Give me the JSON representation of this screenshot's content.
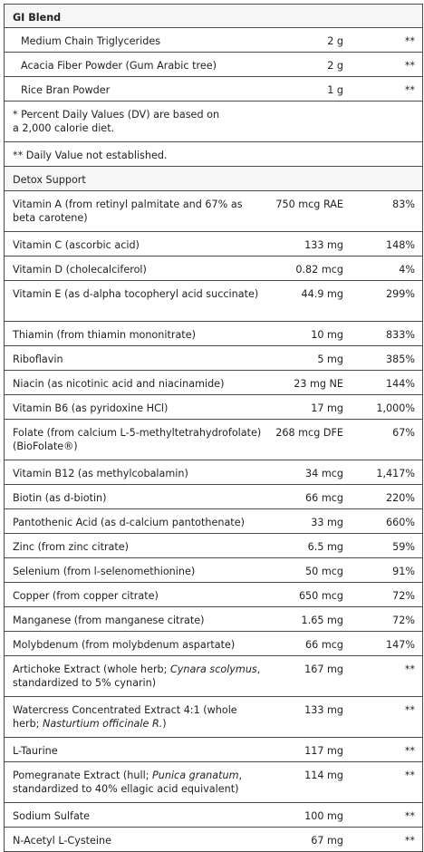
{
  "gi_blend": {
    "title": "GI Blend",
    "items": [
      {
        "name": "Medium Chain Triglycerides",
        "amount": "2 g",
        "dv": "**"
      },
      {
        "name": "Acacia Fiber Powder (Gum Arabic tree)",
        "amount": "2 g",
        "dv": "**"
      },
      {
        "name": "Rice Bran Powder",
        "amount": "1 g",
        "dv": "**"
      }
    ]
  },
  "footnotes": {
    "percent_dv": "* Percent Daily Values (DV) are based on a 2,000 calorie diet.",
    "not_established": "** Daily Value not established."
  },
  "detox_support": {
    "title": "Detox Support",
    "items": [
      {
        "name": "Vitamin A (from retinyl palmitate and 67% as beta carotene)",
        "amount": "750 mcg RAE",
        "dv": "83%"
      },
      {
        "name": "Vitamin C (ascorbic acid)",
        "amount": "133 mg",
        "dv": "148%"
      },
      {
        "name": "Vitamin D (cholecalciferol)",
        "amount": "0.82 mcg",
        "dv": "4%"
      },
      {
        "name": "Vitamin E (as d-alpha tocopheryl acid succinate)",
        "amount": "44.9 mg",
        "dv": "299%"
      },
      {
        "name": "Thiamin (from thiamin mononitrate)",
        "amount": "10 mg",
        "dv": "833%"
      },
      {
        "name": "Riboflavin",
        "amount": "5 mg",
        "dv": "385%"
      },
      {
        "name": "Niacin (as nicotinic acid and niacinamide)",
        "amount": "23 mg NE",
        "dv": "144%"
      },
      {
        "name": "Vitamin B6 (as pyridoxine HCl)",
        "amount": "17 mg",
        "dv": "1,000%"
      },
      {
        "name": "Folate (from calcium L-5-methyltetrahydrofolate) (BioFolate®)",
        "amount": "268 mcg DFE",
        "dv": "67%"
      },
      {
        "name": "Vitamin B12 (as methylcobalamin)",
        "amount": "34 mcg",
        "dv": "1,417%"
      },
      {
        "name": "Biotin (as d-biotin)",
        "amount": "66 mcg",
        "dv": "220%"
      },
      {
        "name": "Pantothenic Acid (as d-calcium pantothenate)",
        "amount": "33 mg",
        "dv": "660%"
      },
      {
        "name": "Zinc (from zinc citrate)",
        "amount": "6.5 mg",
        "dv": "59%"
      },
      {
        "name": "Selenium (from l-selenomethionine)",
        "amount": "50 mcg",
        "dv": "91%"
      },
      {
        "name": "Copper (from copper citrate)",
        "amount": "650 mcg",
        "dv": "72%"
      },
      {
        "name": "Manganese (from manganese citrate)",
        "amount": "1.65 mg",
        "dv": "72%"
      },
      {
        "name": "Molybdenum (from molybdenum aspartate)",
        "amount": "66 mcg",
        "dv": "147%"
      }
    ],
    "artichoke": {
      "pre": "Artichoke Extract (whole herb; ",
      "italic": "Cynara scolymus",
      "post": ", standardized to 5% cynarin)",
      "amount": "167 mg",
      "dv": "**"
    },
    "watercress": {
      "pre": "Watercress Concentrated Extract 4:1 (whole herb; ",
      "italic": "Nasturtium officinale R.",
      "post": ")",
      "amount": "133 mg",
      "dv": "**"
    },
    "taurine": {
      "name": "L-Taurine",
      "amount": "117 mg",
      "dv": "**"
    },
    "pomegranate": {
      "pre": "Pomegranate Extract (hull; ",
      "italic": "Punica granatum",
      "post": ", standardized to 40% ellagic acid equivalent)",
      "amount": "114 mg",
      "dv": "**"
    },
    "sodium_sulfate": {
      "name": "Sodium Sulfate",
      "amount": "100 mg",
      "dv": "**"
    },
    "nac": {
      "name": "N-Acetyl L-Cysteine",
      "amount": "67 mg",
      "dv": "**"
    }
  }
}
